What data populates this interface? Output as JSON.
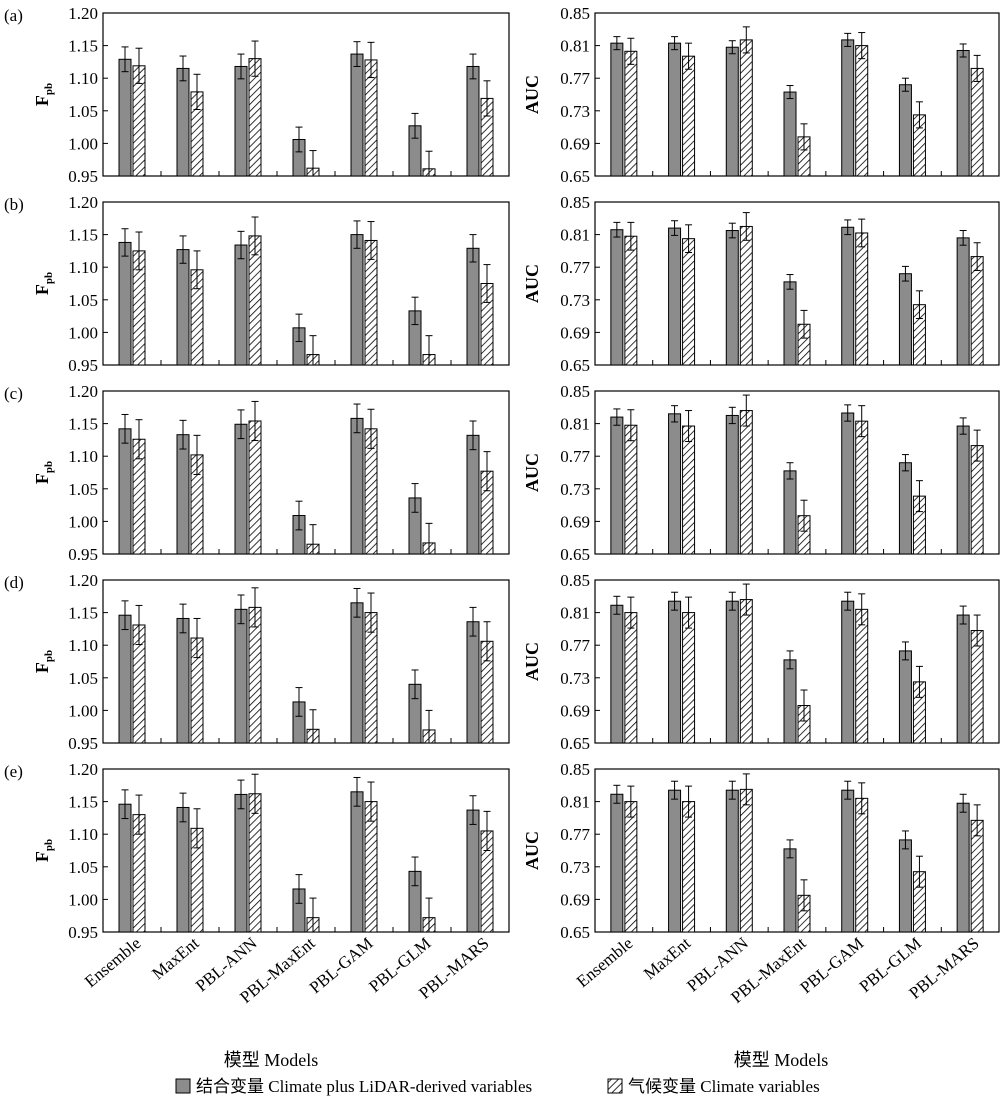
{
  "models": [
    "Ensemble",
    "MaxEnt",
    "PBL-ANN",
    "PBL-MaxEnt",
    "PBL-GAM",
    "PBL-GLM",
    "PBL-MARS"
  ],
  "xlabel": "模型 Models",
  "legend": {
    "combined": "结合变量 Climate plus LiDAR-derived variables",
    "climate": "气候变量 Climate variables"
  },
  "colors": {
    "combined_fill": "#8c8c8c",
    "climate_fill": "#ffffff",
    "stroke": "#000000"
  },
  "chart_data": [
    {
      "panel": "(a)",
      "type": "bar",
      "ylabel": "F",
      "ylabel_sub": "pb",
      "ylim": [
        0.95,
        1.2
      ],
      "yticks": [
        "1.20",
        "1.15",
        "1.10",
        "1.05",
        "1.00",
        "0.95"
      ],
      "series": [
        {
          "name": "结合变量 Climate plus LiDAR-derived variables",
          "values": [
            1.129,
            1.115,
            1.118,
            1.006,
            1.137,
            1.027,
            1.118
          ],
          "err": [
            0.019,
            0.019,
            0.019,
            0.019,
            0.019,
            0.019,
            0.019
          ]
        },
        {
          "name": "气候变量 Climate variables",
          "values": [
            1.119,
            1.079,
            1.13,
            0.962,
            1.128,
            0.961,
            1.069
          ],
          "err": [
            0.027,
            0.027,
            0.027,
            0.027,
            0.027,
            0.027,
            0.027
          ]
        }
      ]
    },
    {
      "panel": "",
      "type": "bar",
      "ylabel": "AUC",
      "ylim": [
        0.65,
        0.85
      ],
      "yticks": [
        "0.85",
        "0.81",
        "0.77",
        "0.73",
        "0.69",
        "0.65"
      ],
      "series": [
        {
          "name": "结合变量 Climate plus LiDAR-derived variables",
          "values": [
            0.813,
            0.813,
            0.808,
            0.753,
            0.817,
            0.762,
            0.804
          ],
          "err": [
            0.008,
            0.008,
            0.008,
            0.008,
            0.008,
            0.008,
            0.008
          ]
        },
        {
          "name": "气候变量 Climate variables",
          "values": [
            0.803,
            0.797,
            0.817,
            0.698,
            0.81,
            0.725,
            0.782
          ],
          "err": [
            0.016,
            0.016,
            0.016,
            0.016,
            0.016,
            0.016,
            0.016
          ]
        }
      ]
    },
    {
      "panel": "(b)",
      "type": "bar",
      "ylabel": "F",
      "ylabel_sub": "pb",
      "ylim": [
        0.95,
        1.2
      ],
      "yticks": [
        "1.20",
        "1.15",
        "1.10",
        "1.05",
        "1.00",
        "0.95"
      ],
      "series": [
        {
          "name": "结合变量 Climate plus LiDAR-derived variables",
          "values": [
            1.138,
            1.127,
            1.134,
            1.007,
            1.15,
            1.033,
            1.129
          ],
          "err": [
            0.021,
            0.021,
            0.021,
            0.021,
            0.021,
            0.021,
            0.021
          ]
        },
        {
          "name": "气候变量 Climate variables",
          "values": [
            1.125,
            1.096,
            1.148,
            0.966,
            1.141,
            0.966,
            1.075
          ],
          "err": [
            0.029,
            0.029,
            0.029,
            0.029,
            0.029,
            0.029,
            0.029
          ]
        }
      ]
    },
    {
      "panel": "",
      "type": "bar",
      "ylabel": "AUC",
      "ylim": [
        0.65,
        0.85
      ],
      "yticks": [
        "0.85",
        "0.81",
        "0.77",
        "0.73",
        "0.69",
        "0.65"
      ],
      "series": [
        {
          "name": "结合变量 Climate plus LiDAR-derived variables",
          "values": [
            0.816,
            0.818,
            0.815,
            0.752,
            0.819,
            0.762,
            0.806
          ],
          "err": [
            0.009,
            0.009,
            0.009,
            0.009,
            0.009,
            0.009,
            0.009
          ]
        },
        {
          "name": "气候变量 Climate variables",
          "values": [
            0.808,
            0.805,
            0.82,
            0.7,
            0.812,
            0.724,
            0.783
          ],
          "err": [
            0.017,
            0.017,
            0.017,
            0.017,
            0.017,
            0.017,
            0.017
          ]
        }
      ]
    },
    {
      "panel": "(c)",
      "type": "bar",
      "ylabel": "F",
      "ylabel_sub": "pb",
      "ylim": [
        0.95,
        1.2
      ],
      "yticks": [
        "1.20",
        "1.15",
        "1.10",
        "1.05",
        "1.00",
        "0.95"
      ],
      "series": [
        {
          "name": "结合变量 Climate plus LiDAR-derived variables",
          "values": [
            1.142,
            1.133,
            1.149,
            1.009,
            1.158,
            1.036,
            1.132
          ],
          "err": [
            0.022,
            0.022,
            0.022,
            0.022,
            0.022,
            0.022,
            0.022
          ]
        },
        {
          "name": "气候变量 Climate variables",
          "values": [
            1.126,
            1.102,
            1.154,
            0.965,
            1.142,
            0.967,
            1.077
          ],
          "err": [
            0.03,
            0.03,
            0.03,
            0.03,
            0.03,
            0.03,
            0.03
          ]
        }
      ]
    },
    {
      "panel": "",
      "type": "bar",
      "ylabel": "AUC",
      "ylim": [
        0.65,
        0.85
      ],
      "yticks": [
        "0.85",
        "0.81",
        "0.77",
        "0.73",
        "0.69",
        "0.65"
      ],
      "series": [
        {
          "name": "结合变量 Climate plus LiDAR-derived variables",
          "values": [
            0.818,
            0.822,
            0.82,
            0.752,
            0.823,
            0.762,
            0.807
          ],
          "err": [
            0.01,
            0.01,
            0.01,
            0.01,
            0.01,
            0.01,
            0.01
          ]
        },
        {
          "name": "气候变量 Climate variables",
          "values": [
            0.808,
            0.807,
            0.826,
            0.697,
            0.813,
            0.721,
            0.783
          ],
          "err": [
            0.019,
            0.019,
            0.019,
            0.019,
            0.019,
            0.019,
            0.019
          ]
        }
      ]
    },
    {
      "panel": "(d)",
      "type": "bar",
      "ylabel": "F",
      "ylabel_sub": "pb",
      "ylim": [
        0.95,
        1.2
      ],
      "yticks": [
        "1.20",
        "1.15",
        "1.10",
        "1.05",
        "1.00",
        "0.95"
      ],
      "series": [
        {
          "name": "结合变量 Climate plus LiDAR-derived variables",
          "values": [
            1.146,
            1.141,
            1.155,
            1.013,
            1.165,
            1.04,
            1.136
          ],
          "err": [
            0.022,
            0.022,
            0.022,
            0.022,
            0.022,
            0.022,
            0.022
          ]
        },
        {
          "name": "气候变量 Climate variables",
          "values": [
            1.131,
            1.111,
            1.158,
            0.971,
            1.15,
            0.97,
            1.106
          ],
          "err": [
            0.03,
            0.03,
            0.03,
            0.03,
            0.03,
            0.03,
            0.03
          ]
        }
      ]
    },
    {
      "panel": "",
      "type": "bar",
      "ylabel": "AUC",
      "ylim": [
        0.65,
        0.85
      ],
      "yticks": [
        "0.85",
        "0.81",
        "0.77",
        "0.73",
        "0.69",
        "0.65"
      ],
      "series": [
        {
          "name": "结合变量 Climate plus LiDAR-derived variables",
          "values": [
            0.819,
            0.824,
            0.824,
            0.752,
            0.824,
            0.763,
            0.807
          ],
          "err": [
            0.011,
            0.011,
            0.011,
            0.011,
            0.011,
            0.011,
            0.011
          ]
        },
        {
          "name": "气候变量 Climate variables",
          "values": [
            0.81,
            0.81,
            0.826,
            0.696,
            0.814,
            0.725,
            0.788
          ],
          "err": [
            0.019,
            0.019,
            0.019,
            0.019,
            0.019,
            0.019,
            0.019
          ]
        }
      ]
    },
    {
      "panel": "(e)",
      "type": "bar",
      "ylabel": "F",
      "ylabel_sub": "pb",
      "ylim": [
        0.95,
        1.2
      ],
      "yticks": [
        "1.20",
        "1.15",
        "1.10",
        "1.05",
        "1.00",
        "0.95"
      ],
      "series": [
        {
          "name": "结合变量 Climate plus LiDAR-derived variables",
          "values": [
            1.146,
            1.141,
            1.161,
            1.016,
            1.165,
            1.043,
            1.137
          ],
          "err": [
            0.022,
            0.022,
            0.022,
            0.022,
            0.022,
            0.022,
            0.022
          ]
        },
        {
          "name": "气候变量 Climate variables",
          "values": [
            1.13,
            1.109,
            1.162,
            0.972,
            1.15,
            0.972,
            1.105
          ],
          "err": [
            0.03,
            0.03,
            0.03,
            0.03,
            0.03,
            0.03,
            0.03
          ]
        }
      ]
    },
    {
      "panel": "",
      "type": "bar",
      "ylabel": "AUC",
      "ylim": [
        0.65,
        0.85
      ],
      "yticks": [
        "0.85",
        "0.81",
        "0.77",
        "0.73",
        "0.69",
        "0.65"
      ],
      "series": [
        {
          "name": "结合变量 Climate plus LiDAR-derived variables",
          "values": [
            0.819,
            0.824,
            0.824,
            0.752,
            0.824,
            0.763,
            0.808
          ],
          "err": [
            0.011,
            0.011,
            0.011,
            0.011,
            0.011,
            0.011,
            0.011
          ]
        },
        {
          "name": "气候变量 Climate variables",
          "values": [
            0.81,
            0.81,
            0.825,
            0.695,
            0.814,
            0.724,
            0.787
          ],
          "err": [
            0.019,
            0.019,
            0.019,
            0.019,
            0.019,
            0.019,
            0.019
          ]
        }
      ]
    }
  ]
}
